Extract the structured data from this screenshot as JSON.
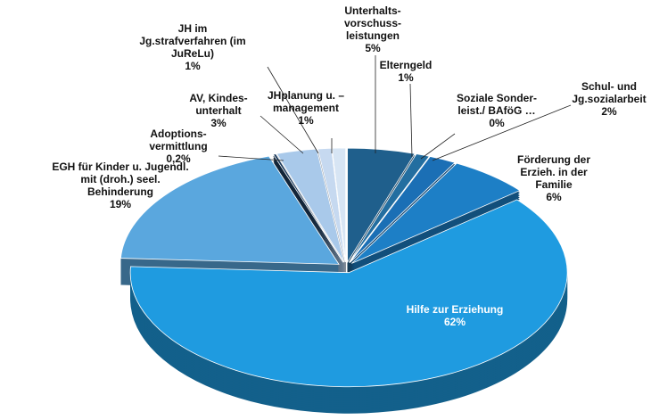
{
  "chart_data": {
    "type": "pie",
    "categories": [
      "Unterhalts-\nvorschuss-\nleistungen",
      "Elterngeld",
      "Soziale Sonder-\nleist./ BAföG …",
      "Schul- und\nJg.sozialarbeit",
      "Förderung der\nErzieh. in der\nFamilie",
      "Hilfe zur Erziehung",
      "EGH für Kinder u. Jugendl.\nmit (droh.) seel.\nBehinderung",
      "Adoptions-\nvermittlung",
      "AV, Kindes-\nunterhalt",
      "JH im\nJg.strafverfahren (im\nJuReLu)",
      "JHplanung u. –\nmanagement"
    ],
    "values": [
      5,
      1,
      0,
      2,
      6,
      62,
      19,
      0.2,
      3,
      1,
      1
    ],
    "value_labels": [
      "5%",
      "1%",
      "0%",
      "2%",
      "6%",
      "62%",
      "19%",
      "0,2%",
      "3%",
      "1%",
      "1%"
    ],
    "colors": [
      "#1f5f8c",
      "#236ea0",
      "#2a78ae",
      "#1b6fb5",
      "#1d7fc6",
      "#1f9be0",
      "#5aa7de",
      "#1d3b5c",
      "#a9c9ea",
      "#c6d9f0",
      "#d7e5f4"
    ]
  }
}
